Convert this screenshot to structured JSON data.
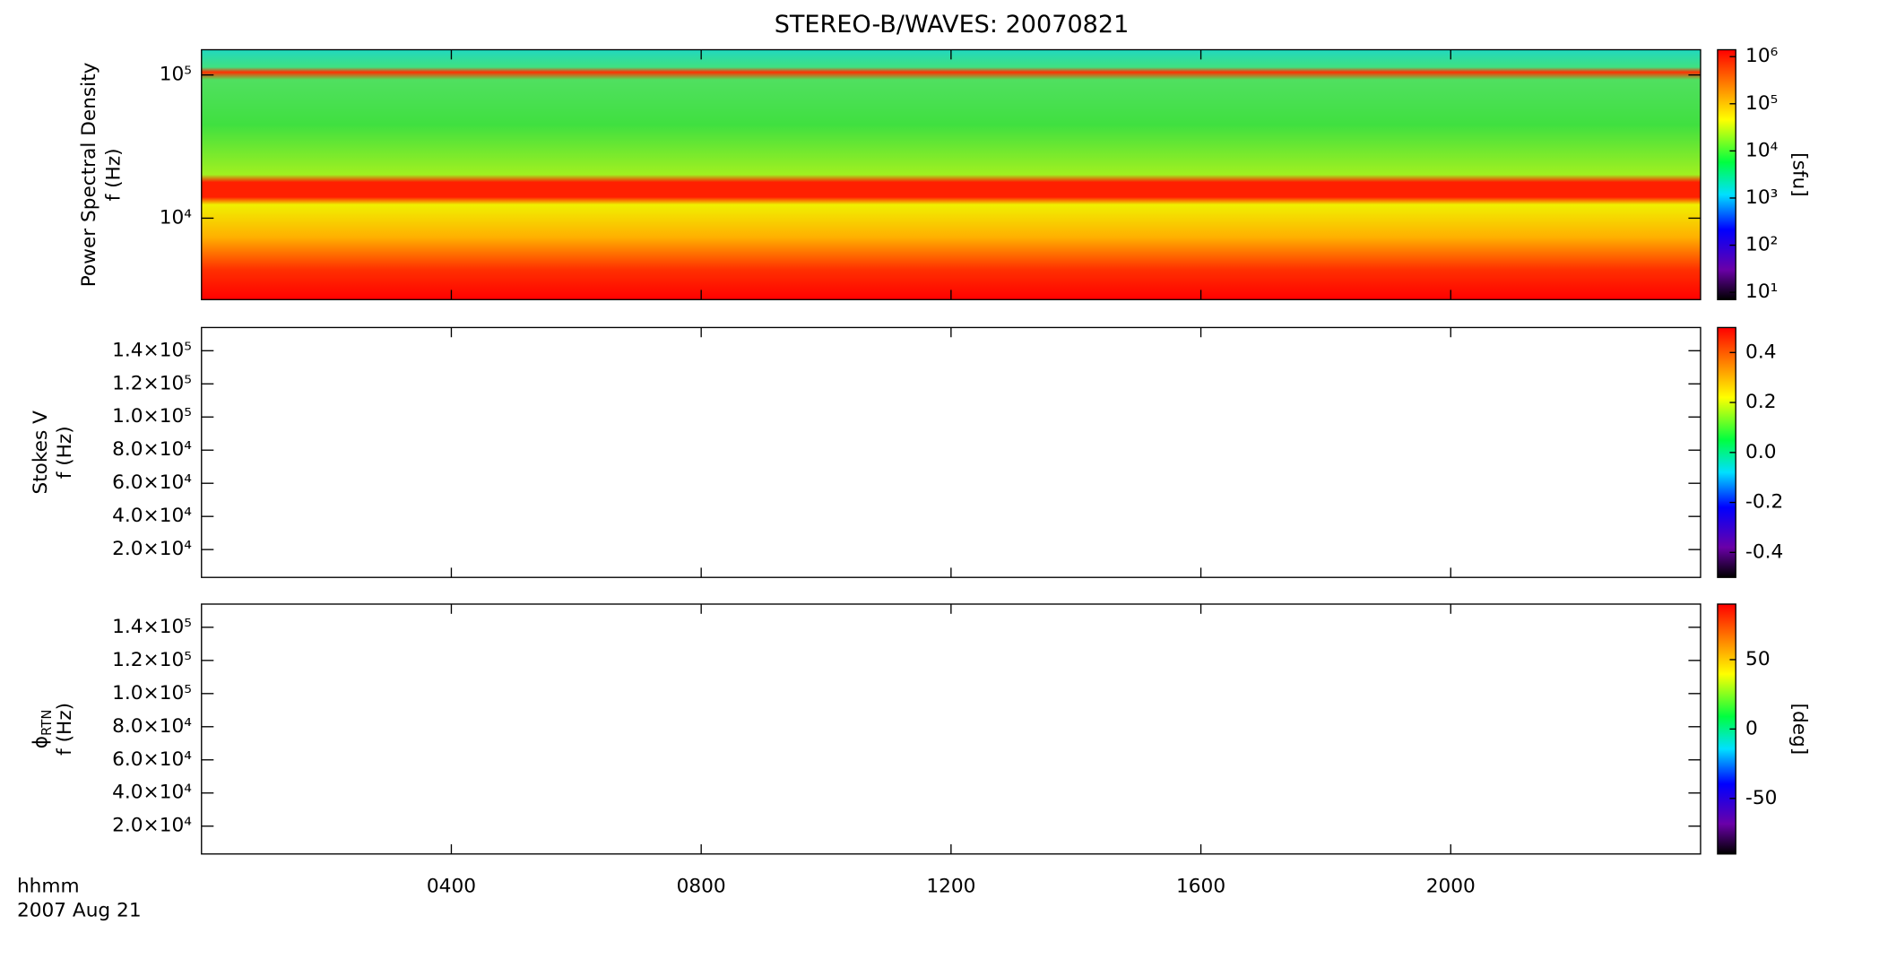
{
  "title": "STEREO-B/WAVES: 20070821",
  "x_axis": {
    "xlim": [
      0,
      24
    ],
    "xticks": [
      {
        "value": 4,
        "label": "0400"
      },
      {
        "value": 8,
        "label": "0800"
      },
      {
        "value": 12,
        "label": "1200"
      },
      {
        "value": 16,
        "label": "1600"
      },
      {
        "value": 20,
        "label": "2000"
      }
    ],
    "label": "hhmm",
    "date": "2007 Aug 21"
  },
  "chart_data": [
    {
      "type": "spectrogram",
      "ylabel": "Power Spectral Density",
      "ylabel_unit": "f (Hz)",
      "ylog": true,
      "ylim": [
        2700,
        150000
      ],
      "yticks": [
        {
          "value": 10000,
          "label": "10⁴"
        },
        {
          "value": 100000,
          "label": "10⁵"
        }
      ],
      "colorbar": {
        "log": true,
        "lim": [
          7,
          1400000
        ],
        "ticks": [
          {
            "value": 10,
            "label": "10¹"
          },
          {
            "value": 100,
            "label": "10²"
          },
          {
            "value": 1000,
            "label": "10³"
          },
          {
            "value": 10000,
            "label": "10⁴"
          },
          {
            "value": 100000,
            "label": "10⁵"
          },
          {
            "value": 1000000,
            "label": "10⁶"
          }
        ],
        "label": "[sfu]"
      }
    },
    {
      "type": "spectrogram",
      "ylabel": "Stokes V",
      "ylabel_unit": "f (Hz)",
      "ylog": false,
      "ylim": [
        3200,
        154000
      ],
      "yticks": [
        {
          "value": 20000,
          "label": "2.0×10⁴"
        },
        {
          "value": 40000,
          "label": "4.0×10⁴"
        },
        {
          "value": 60000,
          "label": "6.0×10⁴"
        },
        {
          "value": 80000,
          "label": "8.0×10⁴"
        },
        {
          "value": 100000,
          "label": "1.0×10⁵"
        },
        {
          "value": 120000,
          "label": "1.2×10⁵"
        },
        {
          "value": 140000,
          "label": "1.4×10⁵"
        }
      ],
      "colorbar": {
        "log": false,
        "lim": [
          -0.5,
          0.5
        ],
        "ticks": [
          -0.4,
          -0.2,
          {
            "value": 0,
            "label": "0.0"
          },
          0.2,
          0.4
        ]
      }
    },
    {
      "type": "spectrogram",
      "ylabel": "ϕ",
      "ylabel_sub": "RTN",
      "ylabel_unit": "f (Hz)",
      "ylog": false,
      "ylim": [
        3200,
        154000
      ],
      "yticks": [
        {
          "value": 20000,
          "label": "2.0×10⁴"
        },
        {
          "value": 40000,
          "label": "4.0×10⁴"
        },
        {
          "value": 60000,
          "label": "6.0×10⁴"
        },
        {
          "value": 80000,
          "label": "8.0×10⁴"
        },
        {
          "value": 100000,
          "label": "1.0×10⁵"
        },
        {
          "value": 120000,
          "label": "1.2×10⁵"
        },
        {
          "value": 140000,
          "label": "1.4×10⁵"
        }
      ],
      "colorbar": {
        "log": false,
        "lim": [
          -90,
          90
        ],
        "ticks": [
          -50,
          0,
          50
        ],
        "label": "[deg]"
      }
    }
  ]
}
